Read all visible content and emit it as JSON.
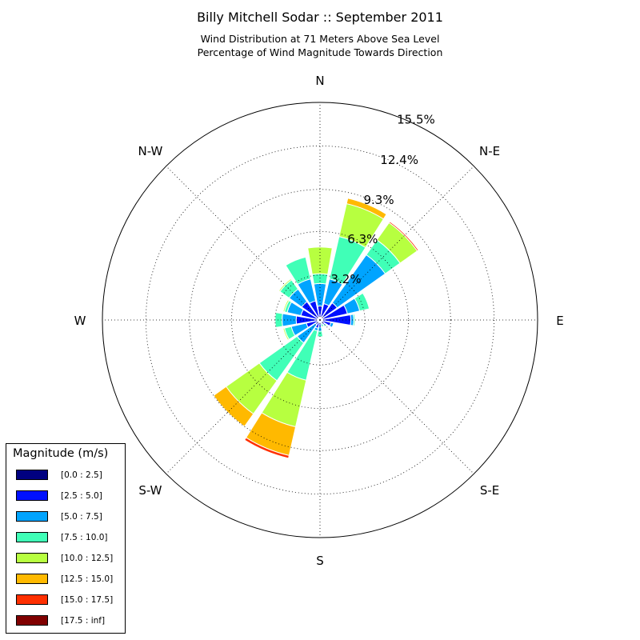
{
  "title": "Billy Mitchell Sodar :: September 2011",
  "subtitle_line1": "Wind Distribution at 71 Meters Above Sea Level",
  "subtitle_line2": "Percentage of Wind Magnitude Towards Direction",
  "chart_data": {
    "type": "windrose",
    "directions": [
      "N",
      "N-E",
      "E",
      "S-E",
      "S",
      "S-W",
      "W",
      "N-W"
    ],
    "radial_tick_labels": [
      "3.2%",
      "6.3%",
      "9.3%",
      "12.4%",
      "15.5%"
    ],
    "radial_ticks": [
      3.2,
      6.3,
      9.3,
      12.4,
      15.5
    ],
    "rmax": 15.5,
    "legend_title": "Magnitude (m/s)",
    "bins": [
      {
        "label": "[0.0 : 2.5]",
        "color": "#000080"
      },
      {
        "label": "[2.5 : 5.0]",
        "color": "#0010ff"
      },
      {
        "label": "[5.0 : 7.5]",
        "color": "#00a4ff"
      },
      {
        "label": "[7.5 : 10.0]",
        "color": "#40ffb7"
      },
      {
        "label": "[10.0 : 12.5]",
        "color": "#b7ff40"
      },
      {
        "label": "[12.5 : 15.0]",
        "color": "#ffb900"
      },
      {
        "label": "[15.0 : 17.5]",
        "color": "#ff3000"
      },
      {
        "label": "[17.5 : inf]",
        "color": "#800000"
      }
    ],
    "sector_width_deg": 22.5,
    "sectors": [
      {
        "angle": 0,
        "cumulative": [
          0.2,
          1.0,
          2.6,
          3.3,
          5.2,
          5.2,
          5.2,
          5.2
        ]
      },
      {
        "angle": 22.5,
        "cumulative": [
          0.2,
          1.2,
          3.0,
          6.1,
          8.5,
          8.9,
          8.9,
          8.9
        ]
      },
      {
        "angle": 45,
        "cumulative": [
          0.3,
          1.5,
          5.7,
          7.0,
          8.5,
          8.5,
          8.6,
          8.6
        ]
      },
      {
        "angle": 67.5,
        "cumulative": [
          0.2,
          2.0,
          2.9,
          3.6,
          3.6,
          3.6,
          3.6,
          3.6
        ]
      },
      {
        "angle": 90,
        "cumulative": [
          0.2,
          2.2,
          2.4,
          2.5,
          2.5,
          2.5,
          2.5,
          2.5
        ]
      },
      {
        "angle": 112.5,
        "cumulative": [
          0.1,
          0.8,
          1.0,
          1.0,
          1.0,
          1.0,
          1.0,
          1.0
        ]
      },
      {
        "angle": 135,
        "cumulative": [
          0.1,
          0.4,
          0.5,
          0.6,
          0.6,
          0.6,
          0.6,
          0.6
        ]
      },
      {
        "angle": 157.5,
        "cumulative": [
          0.1,
          0.2,
          0.3,
          0.5,
          0.5,
          0.5,
          0.5,
          0.5
        ]
      },
      {
        "angle": 180,
        "cumulative": [
          0.1,
          0.5,
          0.8,
          1.2,
          1.2,
          1.2,
          1.2,
          1.2
        ]
      },
      {
        "angle": 202.5,
        "cumulative": [
          0.1,
          0.6,
          0.8,
          4.4,
          7.8,
          9.9,
          10.1,
          10.1
        ]
      },
      {
        "angle": 225,
        "cumulative": [
          0.1,
          0.4,
          2.0,
          5.3,
          8.2,
          9.3,
          9.3,
          9.3
        ]
      },
      {
        "angle": 247.5,
        "cumulative": [
          0.1,
          1.0,
          2.1,
          2.6,
          2.7,
          2.7,
          2.7,
          2.7
        ]
      },
      {
        "angle": 270,
        "cumulative": [
          0.1,
          1.7,
          2.7,
          3.2,
          3.2,
          3.2,
          3.2,
          3.2
        ]
      },
      {
        "angle": 292.5,
        "cumulative": [
          0.1,
          1.4,
          2.4,
          2.6,
          2.7,
          2.7,
          2.7,
          2.7
        ]
      },
      {
        "angle": 315,
        "cumulative": [
          0.1,
          1.6,
          2.7,
          3.5,
          3.6,
          3.6,
          3.6,
          3.6
        ]
      },
      {
        "angle": 337.5,
        "cumulative": [
          0.2,
          1.4,
          3.0,
          4.6,
          4.6,
          4.6,
          4.6,
          4.6
        ]
      }
    ]
  }
}
